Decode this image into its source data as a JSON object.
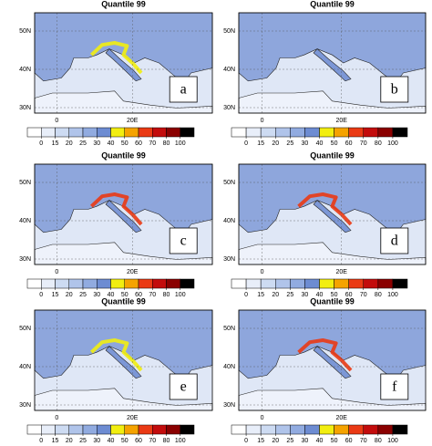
{
  "panels": [
    {
      "title": "Quantile 99",
      "label": "a",
      "lat_labels": [
        "50N",
        "40N",
        "30N"
      ],
      "lon_labels": [
        "0",
        "20E"
      ]
    },
    {
      "title": "Quantile 99",
      "label": "b",
      "lat_labels": [
        "50N",
        "40N",
        "30N"
      ],
      "lon_labels": [
        "0",
        "20E"
      ]
    },
    {
      "title": "Quantile 99",
      "label": "c",
      "lat_labels": [
        "50N",
        "40N",
        "30N"
      ],
      "lon_labels": [
        "0",
        "20E"
      ]
    },
    {
      "title": "Quantile 99",
      "label": "d",
      "lat_labels": [
        "50N",
        "40N",
        "30N"
      ],
      "lon_labels": [
        "0",
        "20E"
      ]
    },
    {
      "title": "Quantile 99",
      "label": "e",
      "lat_labels": [
        "50N",
        "40N",
        "30N"
      ],
      "lon_labels": [
        "0",
        "20E"
      ]
    },
    {
      "title": "Quantile 99",
      "label": "f",
      "lat_labels": [
        "50N",
        "40N",
        "30N"
      ],
      "lon_labels": [
        "0",
        "20E"
      ]
    }
  ],
  "colorbar": {
    "ticks": [
      0,
      15,
      20,
      25,
      30,
      40,
      50,
      60,
      70,
      80,
      100
    ],
    "colors": [
      "#ffffff",
      "#e8eef9",
      "#cddbf2",
      "#b0c4ea",
      "#91abe0",
      "#6d8cd2",
      "#f2ee10",
      "#f5a300",
      "#ea3a14",
      "#c30c0c",
      "#8a0000",
      "#000000"
    ]
  }
}
